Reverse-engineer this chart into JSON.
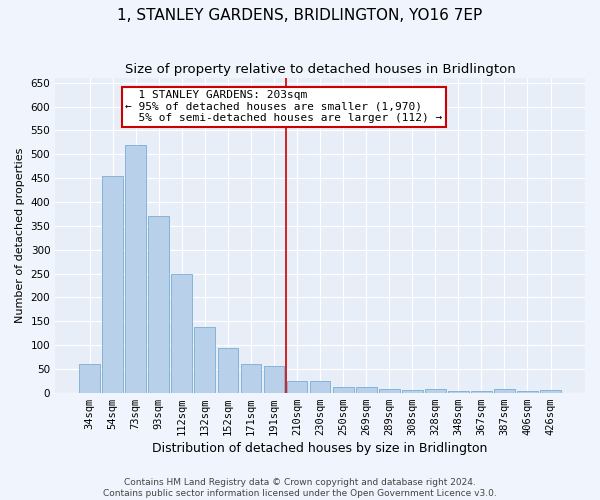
{
  "title": "1, STANLEY GARDENS, BRIDLINGTON, YO16 7EP",
  "subtitle": "Size of property relative to detached houses in Bridlington",
  "xlabel": "Distribution of detached houses by size in Bridlington",
  "ylabel": "Number of detached properties",
  "categories": [
    "34sqm",
    "54sqm",
    "73sqm",
    "93sqm",
    "112sqm",
    "132sqm",
    "152sqm",
    "171sqm",
    "191sqm",
    "210sqm",
    "230sqm",
    "250sqm",
    "269sqm",
    "289sqm",
    "308sqm",
    "328sqm",
    "348sqm",
    "367sqm",
    "387sqm",
    "406sqm",
    "426sqm"
  ],
  "values": [
    60,
    455,
    520,
    370,
    248,
    138,
    93,
    61,
    57,
    25,
    25,
    11,
    11,
    8,
    5,
    7,
    4,
    4,
    7,
    4,
    5
  ],
  "bar_color": "#b8d0ea",
  "bar_edge_color": "#7aadd4",
  "annotation_text": "  1 STANLEY GARDENS: 203sqm\n← 95% of detached houses are smaller (1,970)\n  5% of semi-detached houses are larger (112) →",
  "annotation_box_color": "#ffffff",
  "annotation_box_edge": "#cc0000",
  "line_color": "#cc0000",
  "ylim": [
    0,
    660
  ],
  "yticks": [
    0,
    50,
    100,
    150,
    200,
    250,
    300,
    350,
    400,
    450,
    500,
    550,
    600,
    650
  ],
  "footer_line1": "Contains HM Land Registry data © Crown copyright and database right 2024.",
  "footer_line2": "Contains public sector information licensed under the Open Government Licence v3.0.",
  "background_color": "#e8eef8",
  "fig_background": "#f0f4fc",
  "grid_color": "#ffffff",
  "title_fontsize": 11,
  "subtitle_fontsize": 9.5,
  "xlabel_fontsize": 9,
  "ylabel_fontsize": 8,
  "tick_fontsize": 7.5,
  "annotation_fontsize": 8,
  "footer_fontsize": 6.5
}
